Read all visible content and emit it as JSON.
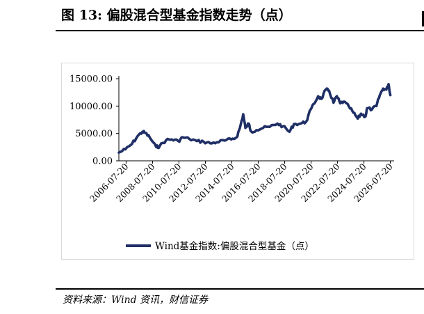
{
  "title": "图 13:  偏股混合型基金指数走势（点）",
  "source": "资料来源：Wind 资讯，财信证券",
  "chart_data": {
    "type": "line",
    "title": "",
    "xlabel": "",
    "ylabel": "",
    "ylim": [
      0,
      15000
    ],
    "y_ticks": [
      0,
      5000,
      10000,
      15000
    ],
    "y_tick_labels": [
      "0.00",
      "5000.00",
      "10000.00",
      "15000.00"
    ],
    "x_range": [
      "2006-01-01",
      "2026-11-01"
    ],
    "x_tick_labels": [
      "2006-07-20",
      "2008-07-20",
      "2010-07-20",
      "2012-07-20",
      "2014-07-20",
      "2016-07-20",
      "2018-07-20",
      "2020-07-20",
      "2022-07-20",
      "2024-07-20",
      "2026-07-20"
    ],
    "grid": false,
    "legend_position": "bottom",
    "color": "#1f2f66",
    "series": [
      {
        "name": "Wind基金指数:偏股混合型基金（点）",
        "points": [
          [
            "2006-01-01",
            1500
          ],
          [
            "2006-07-01",
            2100
          ],
          [
            "2007-01-01",
            3100
          ],
          [
            "2007-06-01",
            4500
          ],
          [
            "2007-10-15",
            5300
          ],
          [
            "2008-01-01",
            5100
          ],
          [
            "2008-05-01",
            4300
          ],
          [
            "2008-11-01",
            2500
          ],
          [
            "2009-02-01",
            2700
          ],
          [
            "2009-08-01",
            3800
          ],
          [
            "2010-01-01",
            3900
          ],
          [
            "2010-07-01",
            3600
          ],
          [
            "2010-11-01",
            4300
          ],
          [
            "2011-05-01",
            4000
          ],
          [
            "2011-12-01",
            3600
          ],
          [
            "2012-06-01",
            3500
          ],
          [
            "2012-12-01",
            3200
          ],
          [
            "2013-06-01",
            3400
          ],
          [
            "2014-01-01",
            3700
          ],
          [
            "2014-07-01",
            3900
          ],
          [
            "2014-12-01",
            4300
          ],
          [
            "2015-03-01",
            6000
          ],
          [
            "2015-06-01",
            8500
          ],
          [
            "2015-08-01",
            6000
          ],
          [
            "2015-11-01",
            6800
          ],
          [
            "2016-01-01",
            5400
          ],
          [
            "2016-06-01",
            5600
          ],
          [
            "2016-12-01",
            6000
          ],
          [
            "2017-06-01",
            6200
          ],
          [
            "2018-01-01",
            6800
          ],
          [
            "2018-06-01",
            6300
          ],
          [
            "2018-12-01",
            5300
          ],
          [
            "2019-04-01",
            6700
          ],
          [
            "2019-10-01",
            6800
          ],
          [
            "2020-03-01",
            7100
          ],
          [
            "2020-07-20",
            9500
          ],
          [
            "2021-02-01",
            11800
          ],
          [
            "2021-05-01",
            11300
          ],
          [
            "2021-09-01",
            13000
          ],
          [
            "2021-12-01",
            12800
          ],
          [
            "2022-04-01",
            10600
          ],
          [
            "2022-07-01",
            11800
          ],
          [
            "2022-10-01",
            10500
          ],
          [
            "2023-01-01",
            10800
          ],
          [
            "2023-06-01",
            9900
          ],
          [
            "2023-10-01",
            8800
          ],
          [
            "2024-02-01",
            7700
          ],
          [
            "2024-05-01",
            8600
          ],
          [
            "2024-09-01",
            8100
          ],
          [
            "2024-10-15",
            9600
          ],
          [
            "2025-03-01",
            9400
          ],
          [
            "2025-07-01",
            10000
          ],
          [
            "2025-10-01",
            12000
          ],
          [
            "2026-01-01",
            13200
          ],
          [
            "2026-04-01",
            13000
          ],
          [
            "2026-06-01",
            14000
          ],
          [
            "2026-07-20",
            12000
          ]
        ]
      }
    ]
  }
}
